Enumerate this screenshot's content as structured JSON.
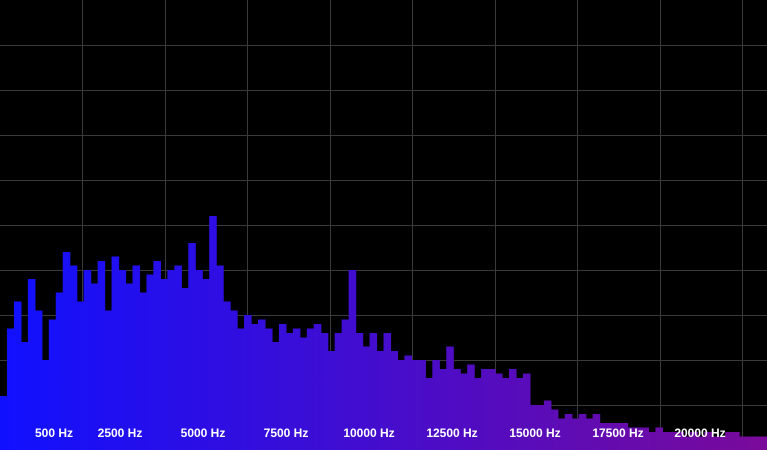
{
  "analyzer": {
    "background_color": "#000000",
    "grid_color": "#3a3a3a",
    "bar_color_low": "#1010ff",
    "bar_color_high": "#7a0a9a",
    "label_color": "#ffffff",
    "x_range_hz": [
      0,
      22000
    ],
    "y_range": [
      0,
      1
    ],
    "frequency_labels": [
      {
        "text": "500 Hz",
        "hz": 500
      },
      {
        "text": "2500 Hz",
        "hz": 2500
      },
      {
        "text": "5000 Hz",
        "hz": 5000
      },
      {
        "text": "7500 Hz",
        "hz": 7500
      },
      {
        "text": "10000 Hz",
        "hz": 10000
      },
      {
        "text": "12500 Hz",
        "hz": 12500
      },
      {
        "text": "15000 Hz",
        "hz": 15000
      },
      {
        "text": "17500 Hz",
        "hz": 17500
      },
      {
        "text": "20000 Hz",
        "hz": 20000
      }
    ]
  },
  "chart_data": {
    "type": "bar",
    "xlabel": "",
    "ylabel": "",
    "xlim": [
      0,
      22000
    ],
    "ylim": [
      0,
      1
    ],
    "grid": true,
    "x": [
      0,
      200,
      400,
      600,
      800,
      1000,
      1200,
      1400,
      1600,
      1800,
      2000,
      2200,
      2400,
      2600,
      2800,
      3000,
      3200,
      3400,
      3600,
      3800,
      4000,
      4200,
      4400,
      4600,
      4800,
      5000,
      5200,
      5400,
      5600,
      5800,
      6000,
      6200,
      6400,
      6600,
      6800,
      7000,
      7200,
      7400,
      7600,
      7800,
      8000,
      8200,
      8400,
      8600,
      8800,
      9000,
      9200,
      9400,
      9600,
      9800,
      10000,
      10200,
      10400,
      10600,
      10800,
      11000,
      11200,
      11400,
      11600,
      11800,
      12000,
      12200,
      12400,
      12600,
      12800,
      13000,
      13200,
      13400,
      13600,
      13800,
      14000,
      14200,
      14400,
      14600,
      14800,
      15000,
      15200,
      15400,
      15600,
      15800,
      16000,
      16200,
      16400,
      16600,
      16800,
      17000,
      17200,
      17400,
      17600,
      17800,
      18000,
      18200,
      18400,
      18600,
      18800,
      19000,
      19200,
      19400,
      19600,
      19800,
      20000,
      20200,
      20400,
      20600,
      20800,
      21000,
      21200,
      21400,
      21600,
      21800
    ],
    "values": [
      0.12,
      0.27,
      0.33,
      0.24,
      0.38,
      0.31,
      0.2,
      0.29,
      0.35,
      0.44,
      0.41,
      0.33,
      0.4,
      0.37,
      0.42,
      0.31,
      0.43,
      0.4,
      0.37,
      0.41,
      0.35,
      0.39,
      0.42,
      0.38,
      0.4,
      0.41,
      0.36,
      0.46,
      0.4,
      0.38,
      0.52,
      0.41,
      0.33,
      0.31,
      0.27,
      0.3,
      0.28,
      0.29,
      0.27,
      0.24,
      0.28,
      0.26,
      0.27,
      0.25,
      0.27,
      0.28,
      0.26,
      0.22,
      0.26,
      0.29,
      0.4,
      0.26,
      0.23,
      0.26,
      0.22,
      0.26,
      0.22,
      0.2,
      0.21,
      0.2,
      0.2,
      0.16,
      0.2,
      0.18,
      0.23,
      0.18,
      0.17,
      0.19,
      0.16,
      0.18,
      0.18,
      0.17,
      0.16,
      0.18,
      0.16,
      0.17,
      0.1,
      0.1,
      0.11,
      0.09,
      0.07,
      0.08,
      0.07,
      0.08,
      0.07,
      0.08,
      0.06,
      0.06,
      0.06,
      0.06,
      0.05,
      0.05,
      0.05,
      0.04,
      0.05,
      0.04,
      0.04,
      0.04,
      0.03,
      0.04,
      0.03,
      0.04,
      0.03,
      0.03,
      0.04,
      0.04,
      0.03,
      0.03,
      0.03,
      0.03
    ]
  }
}
